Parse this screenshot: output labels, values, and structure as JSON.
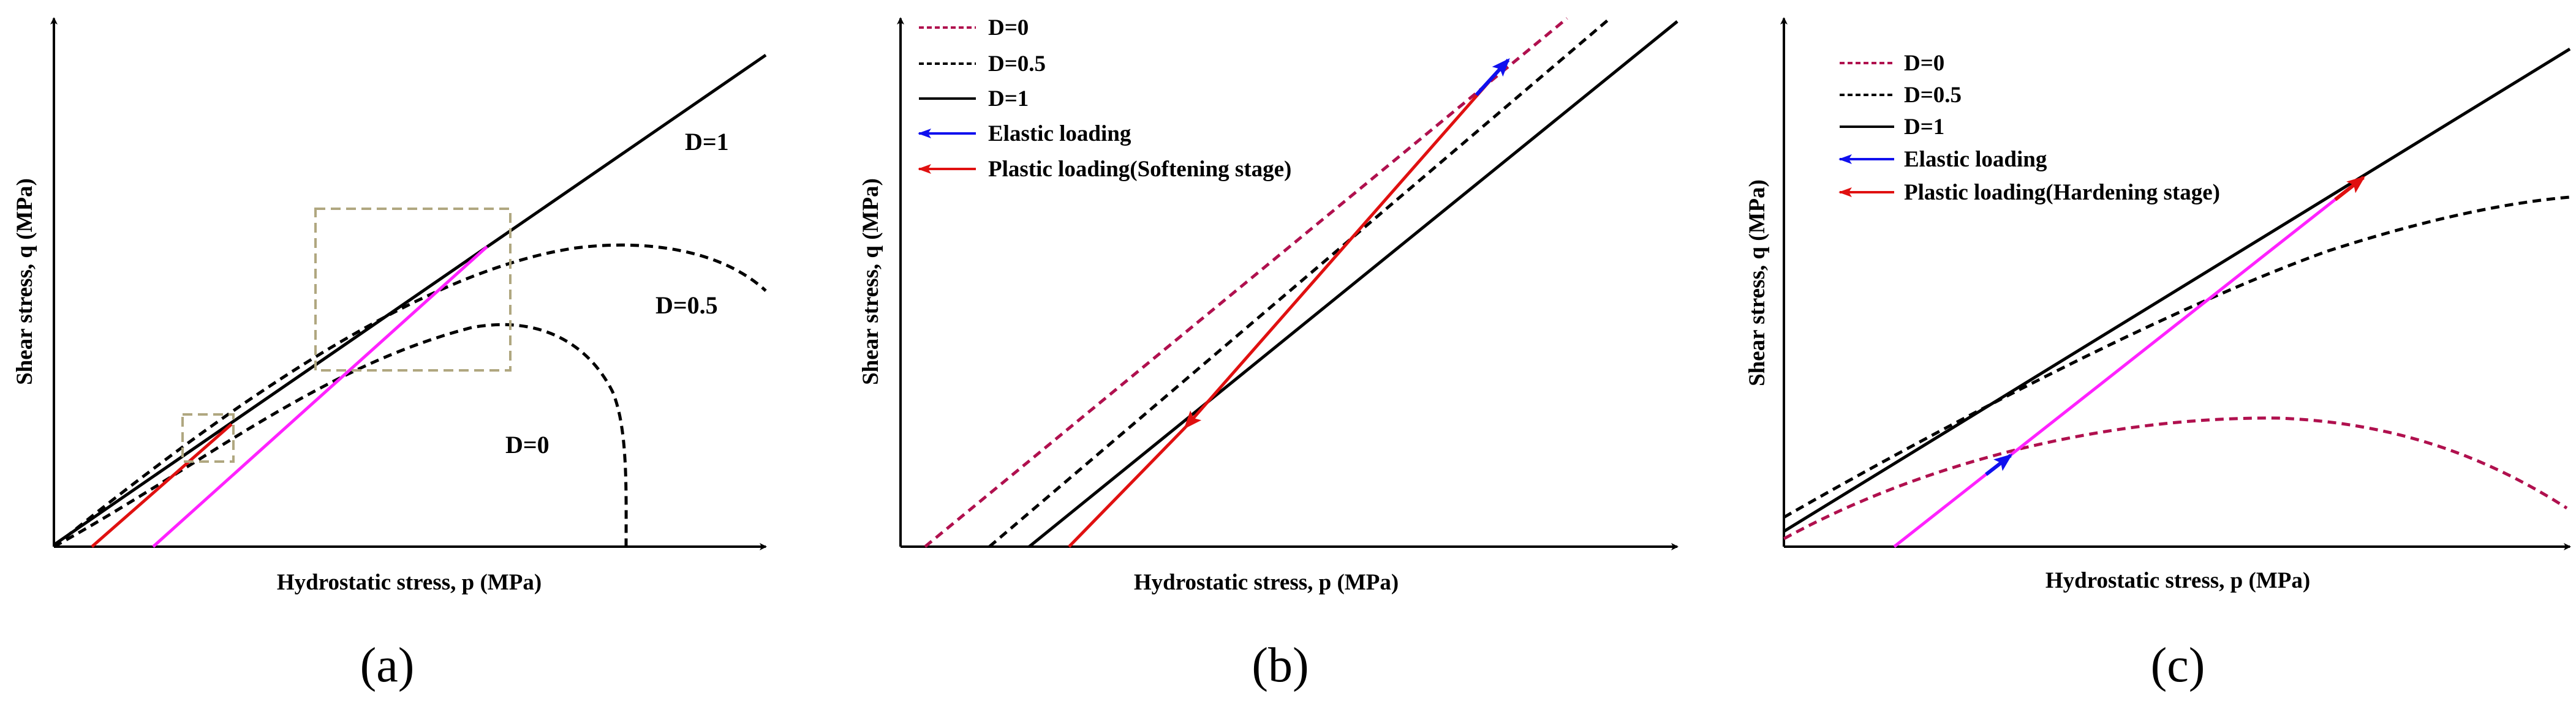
{
  "colors": {
    "d0_dashed": "#b0104e",
    "black": "#000000",
    "elastic": "#1010ee",
    "plastic": "#e01010",
    "magenta": "#ff22ff",
    "callout_box": "#b0a780"
  },
  "panels": [
    {
      "caption": "(a)",
      "xlabel": "Hydrostatic stress, p (MPa)",
      "ylabel": "Shear stress, q (MPa)",
      "curve_labels": {
        "d1": "D=1",
        "d05": "D=0.5",
        "d0": "D=0"
      }
    },
    {
      "caption": "(b)",
      "xlabel": "Hydrostatic stress, p (MPa)",
      "ylabel": "Shear stress, q (MPa)",
      "legend": [
        {
          "label": "D=0",
          "style": "dashed-crimson"
        },
        {
          "label": "D=0.5",
          "style": "dashed-black"
        },
        {
          "label": "D=1",
          "style": "solid-black"
        },
        {
          "label": "Elastic loading",
          "style": "arrow-blue"
        },
        {
          "label": "Plastic loading(Softening stage)",
          "style": "arrow-red"
        }
      ]
    },
    {
      "caption": "(c)",
      "xlabel": "Hydrostatic stress, p (MPa)",
      "ylabel": "Shear stress, q (MPa)",
      "legend": [
        {
          "label": "D=0",
          "style": "dashed-crimson"
        },
        {
          "label": "D=0.5",
          "style": "dashed-black"
        },
        {
          "label": "D=1",
          "style": "solid-black"
        },
        {
          "label": "Elastic loading",
          "style": "arrow-blue"
        },
        {
          "label": "Plastic loading(Hardening stage)",
          "style": "arrow-red"
        }
      ]
    }
  ]
}
